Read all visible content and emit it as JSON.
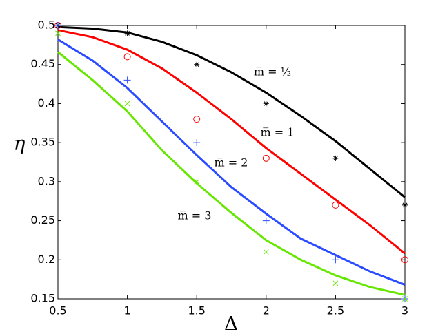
{
  "chart_data": {
    "type": "line",
    "xlabel": "Δ",
    "ylabel": "η",
    "x": [
      0.5,
      0.75,
      1,
      1.25,
      1.5,
      1.75,
      2,
      2.25,
      2.5,
      2.75,
      3
    ],
    "marker_x": [
      0.5,
      1,
      1.5,
      2,
      2.5,
      3
    ],
    "series": [
      {
        "color": "#000000",
        "marker": "star",
        "values": [
          0.498,
          0.496,
          0.491,
          0.479,
          0.462,
          0.44,
          0.414,
          0.384,
          0.352,
          0.316,
          0.28
        ],
        "marker_values": [
          0.5,
          0.49,
          0.45,
          0.4,
          0.33,
          0.27
        ]
      },
      {
        "color": "#ff0000",
        "marker": "circle",
        "values": [
          0.494,
          0.485,
          0.469,
          0.445,
          0.414,
          0.38,
          0.343,
          0.31,
          0.277,
          0.244,
          0.208
        ],
        "marker_values": [
          0.5,
          0.46,
          0.38,
          0.33,
          0.27,
          0.2
        ]
      },
      {
        "color": "#2a4bff",
        "marker": "plus",
        "values": [
          0.482,
          0.455,
          0.42,
          0.377,
          0.334,
          0.293,
          0.259,
          0.227,
          0.206,
          0.185,
          0.168
        ],
        "marker_values": [
          0.5,
          0.43,
          0.35,
          0.25,
          0.2,
          0.15
        ]
      },
      {
        "color": "#66e600",
        "marker": "cross",
        "values": [
          0.466,
          0.43,
          0.39,
          0.34,
          0.298,
          0.26,
          0.225,
          0.2,
          0.18,
          0.165,
          0.155
        ],
        "marker_values": [
          0.49,
          0.4,
          0.3,
          0.21,
          0.17,
          0.15
        ]
      }
    ],
    "annotations": [
      "m̅ = ½",
      "m̅ = 1",
      "m̅ = 2",
      "m̅ = 3"
    ],
    "xlim": [
      0.5,
      3
    ],
    "xticks": [
      0.5,
      1,
      1.5,
      2,
      2.5,
      3
    ],
    "ylim": [
      0.15,
      0.5
    ],
    "yticks": [
      0.15,
      0.2,
      0.25,
      0.3,
      0.35,
      0.4,
      0.45,
      0.5
    ]
  }
}
